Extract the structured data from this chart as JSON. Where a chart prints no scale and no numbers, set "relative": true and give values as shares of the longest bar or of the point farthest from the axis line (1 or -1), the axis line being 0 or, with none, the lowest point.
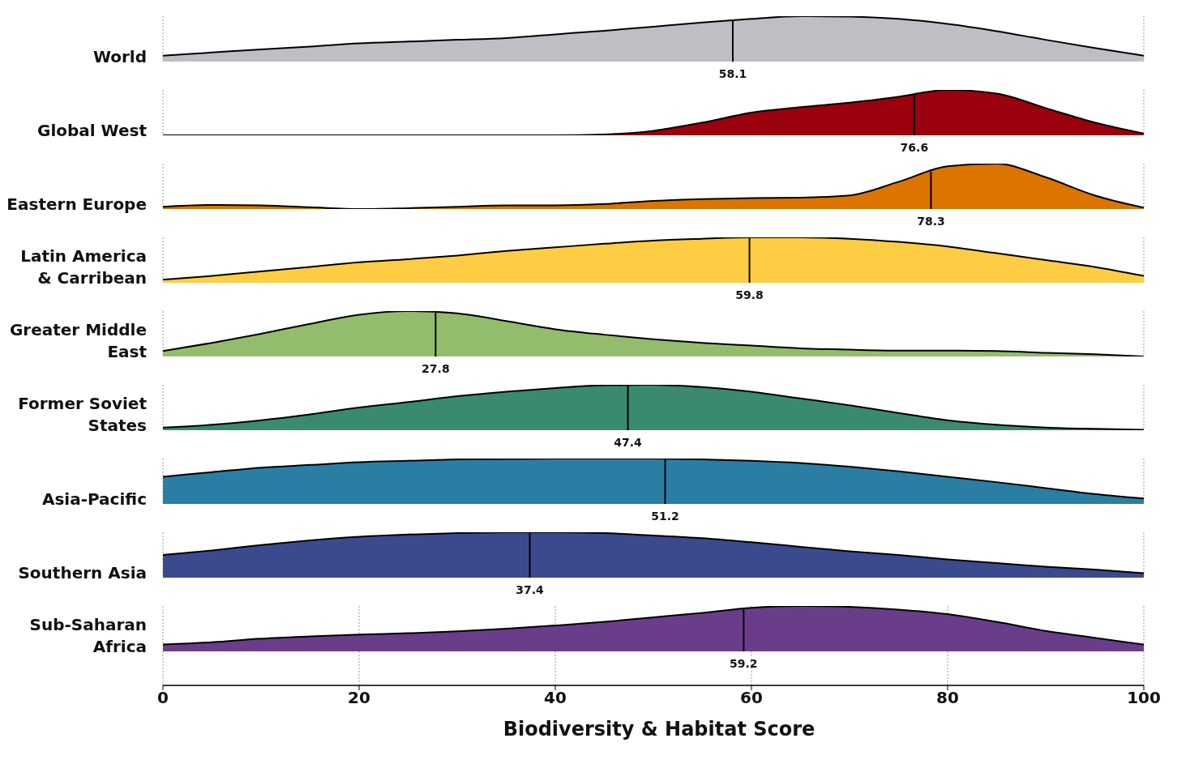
{
  "chart_data": [
    {
      "type": "area",
      "ylabel": "World",
      "relative": true,
      "x": [
        0,
        5,
        10,
        15,
        20,
        25,
        30,
        35,
        40,
        45,
        50,
        55,
        60,
        65,
        70,
        75,
        80,
        85,
        90,
        95,
        100
      ],
      "xlim": [
        0,
        100
      ],
      "xticks": [
        0,
        20,
        40,
        60,
        80,
        100
      ],
      "grid": "x",
      "tick_labels": false,
      "ref_lines": [
        {
          "axis": "x",
          "value": 58.1,
          "label": "58.1"
        }
      ],
      "series": [
        {
          "color": "#c0bec4",
          "values": [
            0.13,
            0.2,
            0.27,
            0.33,
            0.4,
            0.44,
            0.48,
            0.52,
            0.6,
            0.68,
            0.77,
            0.86,
            0.94,
            1,
            0.99,
            0.94,
            0.83,
            0.67,
            0.48,
            0.3,
            0.13
          ]
        }
      ]
    },
    {
      "type": "area",
      "ylabel": "Global West",
      "relative": true,
      "x": [
        0,
        5,
        10,
        15,
        20,
        25,
        30,
        35,
        40,
        45,
        50,
        55,
        60,
        65,
        70,
        75,
        80,
        85,
        90,
        95,
        100
      ],
      "xlim": [
        0,
        100
      ],
      "xticks": [
        0,
        20,
        40,
        60,
        80,
        100
      ],
      "grid": "x",
      "tick_labels": false,
      "ref_lines": [
        {
          "axis": "x",
          "value": 76.6,
          "label": "76.6"
        }
      ],
      "series": [
        {
          "color": "#9b000d",
          "values": [
            0,
            0,
            0,
            0,
            0,
            0,
            0,
            0,
            0,
            0.02,
            0.1,
            0.28,
            0.5,
            0.62,
            0.72,
            0.85,
            1,
            0.92,
            0.6,
            0.28,
            0.04
          ]
        }
      ]
    },
    {
      "type": "area",
      "ylabel": "Eastern Europe",
      "relative": true,
      "x": [
        0,
        5,
        10,
        15,
        20,
        25,
        30,
        35,
        40,
        45,
        50,
        55,
        60,
        65,
        70,
        75,
        80,
        85,
        90,
        95,
        100
      ],
      "xlim": [
        0,
        100
      ],
      "xticks": [
        0,
        20,
        40,
        60,
        80,
        100
      ],
      "grid": "x",
      "tick_labels": false,
      "ref_lines": [
        {
          "axis": "x",
          "value": 78.3,
          "label": "78.3"
        }
      ],
      "series": [
        {
          "color": "#dc7400",
          "values": [
            0.05,
            0.09,
            0.08,
            0.04,
            0,
            0.02,
            0.05,
            0.08,
            0.08,
            0.11,
            0.18,
            0.22,
            0.24,
            0.25,
            0.3,
            0.6,
            0.94,
            1,
            0.7,
            0.3,
            0.03
          ]
        }
      ]
    },
    {
      "type": "area",
      "ylabel": "Latin America & Carribean",
      "relative": true,
      "x": [
        0,
        5,
        10,
        15,
        20,
        25,
        30,
        35,
        40,
        45,
        50,
        55,
        60,
        65,
        70,
        75,
        80,
        85,
        90,
        95,
        100
      ],
      "xlim": [
        0,
        100
      ],
      "xticks": [
        0,
        20,
        40,
        60,
        80,
        100
      ],
      "grid": "x",
      "tick_labels": false,
      "ref_lines": [
        {
          "axis": "x",
          "value": 59.8,
          "label": "59.8"
        }
      ],
      "series": [
        {
          "color": "#ffcd44",
          "values": [
            0.07,
            0.15,
            0.25,
            0.35,
            0.45,
            0.52,
            0.6,
            0.7,
            0.78,
            0.86,
            0.93,
            0.97,
            1,
            1,
            0.97,
            0.9,
            0.8,
            0.65,
            0.5,
            0.35,
            0.15
          ]
        }
      ]
    },
    {
      "type": "area",
      "ylabel": "Greater Middle East",
      "relative": true,
      "x": [
        0,
        5,
        10,
        15,
        20,
        25,
        30,
        35,
        40,
        45,
        50,
        55,
        60,
        65,
        70,
        75,
        80,
        85,
        90,
        95,
        100
      ],
      "xlim": [
        0,
        100
      ],
      "xticks": [
        0,
        20,
        40,
        60,
        80,
        100
      ],
      "grid": "x",
      "tick_labels": false,
      "ref_lines": [
        {
          "axis": "x",
          "value": 27.8,
          "label": "27.8"
        }
      ],
      "series": [
        {
          "color": "#93bd6c",
          "values": [
            0.12,
            0.3,
            0.5,
            0.72,
            0.92,
            1,
            0.95,
            0.78,
            0.6,
            0.48,
            0.38,
            0.3,
            0.24,
            0.18,
            0.15,
            0.13,
            0.13,
            0.12,
            0.08,
            0.05,
            0
          ]
        }
      ]
    },
    {
      "type": "area",
      "ylabel": "Former Soviet States",
      "relative": true,
      "x": [
        0,
        5,
        10,
        15,
        20,
        25,
        30,
        35,
        40,
        45,
        50,
        55,
        60,
        65,
        70,
        75,
        80,
        85,
        90,
        95,
        100
      ],
      "xlim": [
        0,
        100
      ],
      "xticks": [
        0,
        20,
        40,
        60,
        80,
        100
      ],
      "grid": "x",
      "tick_labels": false,
      "ref_lines": [
        {
          "axis": "x",
          "value": 47.4,
          "label": "47.4"
        }
      ],
      "series": [
        {
          "color": "#3a8a6e",
          "values": [
            0.06,
            0.12,
            0.22,
            0.35,
            0.5,
            0.62,
            0.75,
            0.85,
            0.93,
            0.99,
            1,
            0.95,
            0.85,
            0.7,
            0.55,
            0.38,
            0.22,
            0.12,
            0.06,
            0.03,
            0.01
          ]
        }
      ]
    },
    {
      "type": "area",
      "ylabel": "Asia-Pacific",
      "relative": true,
      "x": [
        0,
        5,
        10,
        15,
        20,
        25,
        30,
        35,
        40,
        45,
        50,
        55,
        60,
        65,
        70,
        75,
        80,
        85,
        90,
        95,
        100
      ],
      "xlim": [
        0,
        100
      ],
      "xticks": [
        0,
        20,
        40,
        60,
        80,
        100
      ],
      "grid": "x",
      "tick_labels": false,
      "ref_lines": [
        {
          "axis": "x",
          "value": 51.2,
          "label": "51.2"
        }
      ],
      "series": [
        {
          "color": "#2a7ea3",
          "values": [
            0.6,
            0.7,
            0.8,
            0.86,
            0.92,
            0.95,
            0.98,
            0.99,
            1,
            1,
            1,
            0.98,
            0.95,
            0.9,
            0.82,
            0.72,
            0.6,
            0.48,
            0.35,
            0.22,
            0.12
          ]
        }
      ]
    },
    {
      "type": "area",
      "ylabel": "Southern Asia",
      "relative": true,
      "x": [
        0,
        5,
        10,
        15,
        20,
        25,
        30,
        35,
        40,
        45,
        50,
        55,
        60,
        65,
        70,
        75,
        80,
        85,
        90,
        95,
        100
      ],
      "xlim": [
        0,
        100
      ],
      "xticks": [
        0,
        20,
        40,
        60,
        80,
        100
      ],
      "grid": "x",
      "tick_labels": false,
      "ref_lines": [
        {
          "axis": "x",
          "value": 37.4,
          "label": "37.4"
        }
      ],
      "series": [
        {
          "color": "#3b4a8f",
          "values": [
            0.5,
            0.6,
            0.72,
            0.82,
            0.9,
            0.95,
            0.98,
            1,
            1,
            0.98,
            0.93,
            0.87,
            0.78,
            0.68,
            0.58,
            0.5,
            0.4,
            0.32,
            0.24,
            0.18,
            0.1
          ]
        }
      ]
    },
    {
      "type": "area",
      "ylabel": "Sub-Saharan Africa",
      "xlabel": "Biodiversity & Habitat Score",
      "relative": true,
      "x": [
        0,
        5,
        10,
        15,
        20,
        25,
        30,
        35,
        40,
        45,
        50,
        55,
        60,
        65,
        70,
        75,
        80,
        85,
        90,
        95,
        100
      ],
      "xlim": [
        0,
        100
      ],
      "xticks": [
        0,
        20,
        40,
        60,
        80,
        100
      ],
      "grid": "x",
      "tick_labels": "x",
      "ref_lines": [
        {
          "axis": "x",
          "value": 59.2,
          "label": "59.2"
        }
      ],
      "series": [
        {
          "color": "#6a3d8a",
          "values": [
            0.15,
            0.2,
            0.28,
            0.33,
            0.37,
            0.4,
            0.44,
            0.5,
            0.57,
            0.65,
            0.75,
            0.85,
            0.96,
            1,
            0.98,
            0.92,
            0.82,
            0.65,
            0.45,
            0.3,
            0.15
          ]
        }
      ]
    }
  ]
}
